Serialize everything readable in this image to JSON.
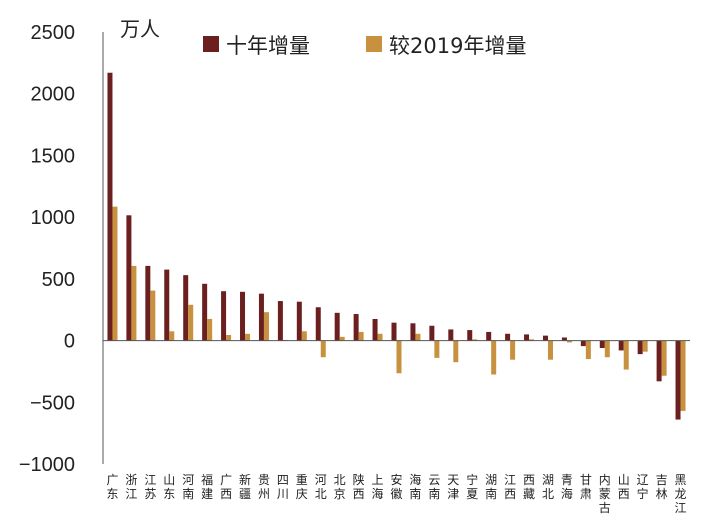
{
  "chart_data": {
    "type": "bar",
    "unit_label": "万人",
    "ylim": [
      -1000,
      2500
    ],
    "yticks": [
      2500,
      2000,
      1500,
      1000,
      500,
      0,
      -500,
      -1000
    ],
    "ytick_labels": [
      "2500",
      "2000",
      "1500",
      "1000",
      "500",
      "0",
      "−500",
      "−1000"
    ],
    "categories": [
      "广东",
      "浙江",
      "江苏",
      "山东",
      "河南",
      "福建",
      "广西",
      "新疆",
      "贵州",
      "四川",
      "重庆",
      "河北",
      "北京",
      "陕西",
      "上海",
      "安徽",
      "海南",
      "云南",
      "天津",
      "宁夏",
      "湖南",
      "江西",
      "西藏",
      "湖北",
      "青海",
      "甘肃",
      "内蒙古",
      "山西",
      "辽宁",
      "吉林",
      "黑龙江"
    ],
    "series": [
      {
        "name": "十年增量",
        "color": "#6b1f1f",
        "values": [
          2170,
          1015,
          605,
          575,
          530,
          460,
          400,
          395,
          380,
          320,
          315,
          270,
          225,
          215,
          175,
          145,
          140,
          120,
          90,
          85,
          70,
          55,
          50,
          40,
          25,
          -45,
          -60,
          -80,
          -110,
          -330,
          -640
        ]
      },
      {
        "name": "较2019年增量",
        "color": "#c8913f",
        "values": [
          1085,
          605,
          405,
          75,
          290,
          175,
          45,
          55,
          230,
          5,
          75,
          -135,
          30,
          70,
          55,
          -265,
          55,
          -140,
          -175,
          10,
          -275,
          -155,
          10,
          -155,
          -15,
          -150,
          -135,
          -235,
          -90,
          -285,
          -570
        ]
      }
    ]
  }
}
